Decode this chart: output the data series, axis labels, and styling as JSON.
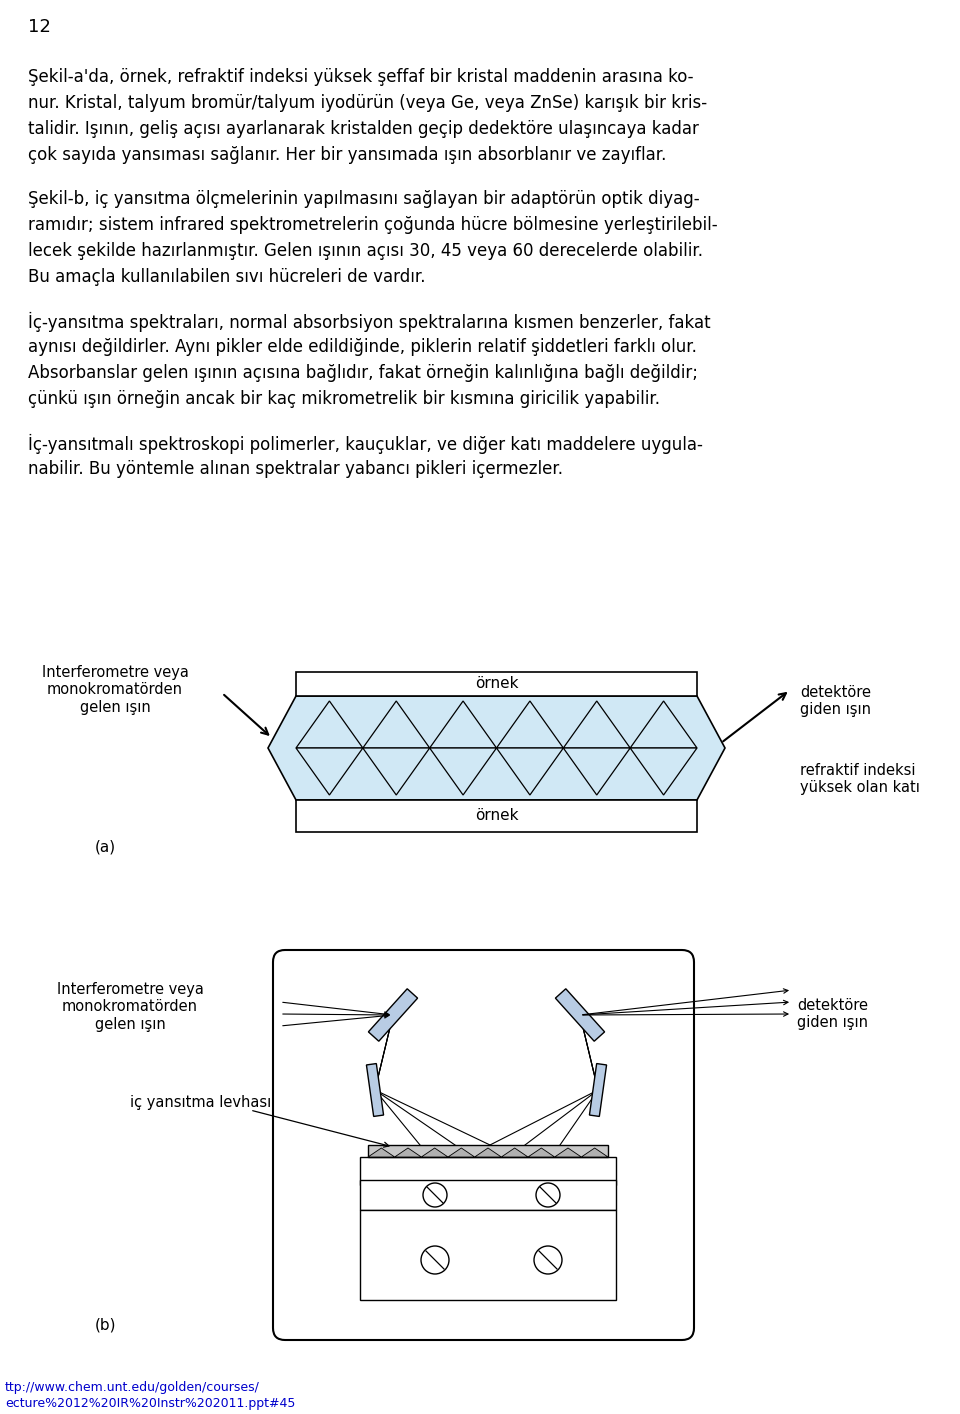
{
  "page_num": "12",
  "bg_color": "#ffffff",
  "text_color": "#000000",
  "crystal_fill": "#d0e8f5",
  "url_color": "#0000cc",
  "p1_lines": [
    "Şekil-a'da, örnek, refraktif indeksi yüksek şeffaf bir kristal maddenin arasına ko-",
    "nur. Kristal, talyum bromür/talyum iyodürün (veya Ge, veya ZnSe) karışık bir kris-",
    "talidir. Işının, geliş açısı ayarlanarak kristalden geçip dedektöre ulaşıncaya kadar",
    "çok sayıda yansıması sağlanır. Her bir yansımada ışın absorblanır ve zayıflar."
  ],
  "p2_lines": [
    "Şekil-b, iç yansıtma ölçmelerinin yapılmasını sağlayan bir adaptörün optik diyag-",
    "ramıdır; sistem infrared spektrometrelerin çoğunda hücre bölmesine yerleştirilebil-",
    "lecek şekilde hazırlanmıştır. Gelen ışının açısı 30, 45 veya 60 derecelerde olabilir.",
    "Bu amaçla kullanılabilen sıvı hücreleri de vardır."
  ],
  "p3_lines": [
    "İç-yansıtma spektraları, normal absorbsiyon spektralarına kısmen benzerler, fakat",
    "aynısı değildirler. Aynı pikler elde edildiğinde, piklerin relatif şiddetleri farklı olur.",
    "Absorbanslar gelen ışının açısına bağlıdır, fakat örneğin kalınlığına bağlı değildir;",
    "çünkü ışın örneğin ancak bir kaç mikrometrelik bir kısmına giricilik yapabilir."
  ],
  "p4_lines": [
    "İç-yansıtmalı spektroskopi polimerler, kauçuklar, ve diğer katı maddelere uygula-",
    "nabilir. Bu yöntemle alınan spektralar yabancı pikleri içermezler."
  ],
  "url_lines": [
    "ttp://www.chem.unt.edu/golden/courses/",
    "ecture%2012%20IR%20Instr%202011.ppt#45"
  ],
  "label_a": "(a)",
  "label_b": "(b)",
  "left_label_a": "Interferometre veya\nmonokromatörden\ngelen ışın",
  "left_label_b": "Interferometre veya\nmonokromatörden\ngelen ışın",
  "right_label_a1": "detektöre\ngiden ışın",
  "right_label_a2": "refraktif indeksi\nyüksek olan katı",
  "right_label_b": "detektöre\ngiden ışın",
  "atr_label_b": "iç yansıtma levhası",
  "ornek_top": "örnek",
  "ornek_bottom": "örnek"
}
